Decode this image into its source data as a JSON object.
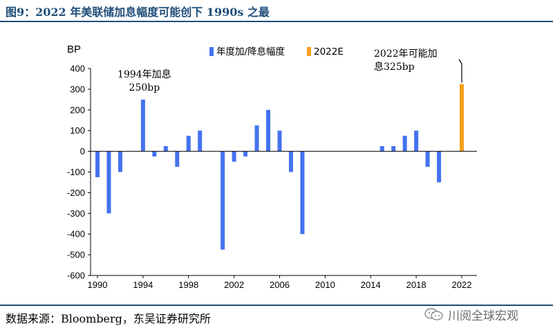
{
  "figure": {
    "title": "图9：2022 年美联储加息幅度可能创下 1990s 之最",
    "source": "数据来源：Bloomberg，东吴证券研究所",
    "watermark": "川阅全球宏观"
  },
  "chart_data": {
    "type": "bar",
    "ylabel": "BP",
    "ylim": [
      -600,
      400
    ],
    "yticks": [
      400,
      300,
      200,
      100,
      0,
      -100,
      -200,
      -300,
      -400,
      -500,
      -600
    ],
    "xlim": [
      1990,
      2022
    ],
    "xticks": [
      1990,
      1994,
      1998,
      2002,
      2006,
      2010,
      2014,
      2018,
      2022
    ],
    "colors": {
      "hist": "#4472f0",
      "est": "#f5a020"
    },
    "series": [
      {
        "name": "年度加/降息幅度",
        "x": [
          1990,
          1991,
          1992,
          1994,
          1995,
          1996,
          1997,
          1998,
          1999,
          2000,
          2001,
          2002,
          2003,
          2004,
          2005,
          2006,
          2007,
          2008,
          2015,
          2016,
          2017,
          2018,
          2019,
          2020
        ],
        "values": [
          -125,
          -300,
          -100,
          250,
          -25,
          25,
          -75,
          75,
          100,
          0,
          -475,
          -50,
          -25,
          125,
          200,
          100,
          -100,
          -400,
          25,
          25,
          75,
          100,
          -75,
          -150
        ]
      },
      {
        "name": "2022E",
        "x": [
          2022
        ],
        "values": [
          325
        ]
      }
    ],
    "annotations": [
      {
        "lines": [
          "1994年加息",
          "250bp"
        ],
        "x": 1994,
        "y": 250
      },
      {
        "lines": [
          "2022年可能加",
          "息325bp"
        ],
        "x": 2022,
        "y": 325
      }
    ]
  }
}
